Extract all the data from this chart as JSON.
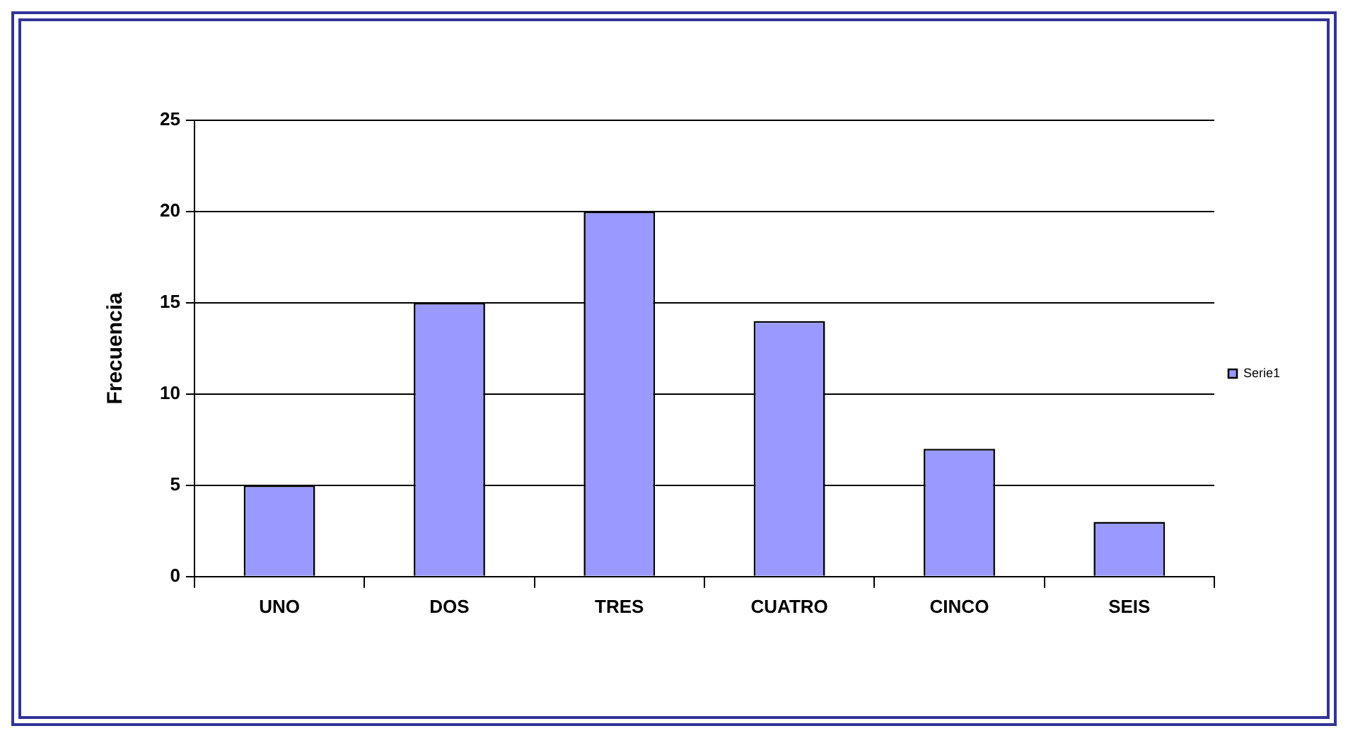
{
  "chart_data": {
    "type": "bar",
    "ylabel": "Frecuencia",
    "categories": [
      "UNO",
      "DOS",
      "TRES",
      "CUATRO",
      "CINCO",
      "SEIS"
    ],
    "series": [
      {
        "name": "Serie1",
        "color": "#9999ff",
        "values": [
          5,
          15,
          20,
          14,
          7,
          3
        ]
      }
    ],
    "ylim": [
      0,
      25
    ],
    "yticks": [
      0,
      5,
      10,
      15,
      20,
      25
    ],
    "grid": "y",
    "legend": "right"
  }
}
